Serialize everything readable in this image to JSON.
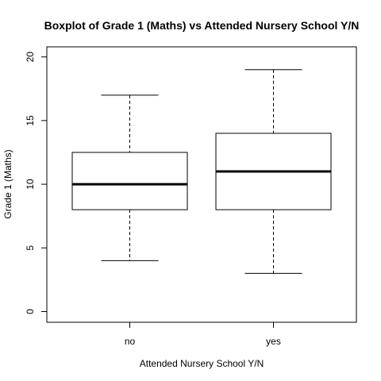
{
  "chart_data": {
    "type": "boxplot",
    "title": "Boxplot of Grade 1 (Maths)  vs  Attended Nursery School Y/N",
    "xlabel": "Attended Nursery School Y/N",
    "ylabel": "Grade 1 (Maths)",
    "categories": [
      "no",
      "yes"
    ],
    "ylim": [
      0,
      20
    ],
    "y_ticks": [
      0,
      5,
      10,
      15,
      20
    ],
    "grid": false,
    "boxes": [
      {
        "category": "no",
        "min": 4,
        "q1": 8,
        "median": 10,
        "q3": 12.5,
        "max": 17
      },
      {
        "category": "yes",
        "min": 3,
        "q1": 8,
        "median": 11,
        "q3": 14,
        "max": 19
      }
    ],
    "colors": {
      "stroke": "#000000",
      "background": "#ffffff"
    }
  }
}
